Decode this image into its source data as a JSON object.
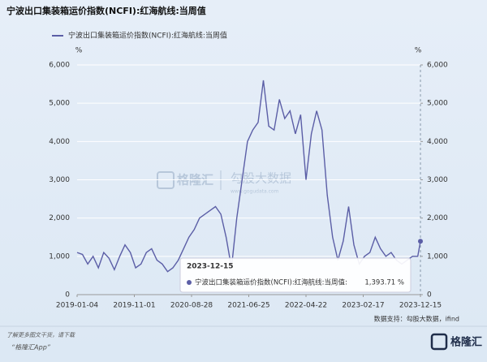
{
  "chart_data": {
    "type": "line",
    "title": "宁波出口集装箱运价指数(NCFI):红海航线:当周值",
    "y_unit": "%",
    "y2_unit": "%",
    "x": [
      "2019-01-04",
      "2019-02-01",
      "2019-03-01",
      "2019-03-29",
      "2019-04-26",
      "2019-05-24",
      "2019-06-21",
      "2019-07-19",
      "2019-08-16",
      "2019-09-13",
      "2019-10-11",
      "2019-11-08",
      "2019-12-06",
      "2020-01-03",
      "2020-01-31",
      "2020-02-28",
      "2020-03-27",
      "2020-04-24",
      "2020-05-22",
      "2020-06-19",
      "2020-07-17",
      "2020-08-14",
      "2020-09-11",
      "2020-10-09",
      "2020-11-06",
      "2020-12-04",
      "2021-01-01",
      "2021-01-29",
      "2021-02-26",
      "2021-03-26",
      "2021-04-23",
      "2021-05-21",
      "2021-06-18",
      "2021-07-16",
      "2021-08-13",
      "2021-09-10",
      "2021-10-08",
      "2021-11-05",
      "2021-12-03",
      "2021-12-31",
      "2022-01-28",
      "2022-02-25",
      "2022-03-25",
      "2022-04-22",
      "2022-05-20",
      "2022-06-17",
      "2022-07-15",
      "2022-08-12",
      "2022-09-09",
      "2022-10-07",
      "2022-11-04",
      "2022-12-02",
      "2022-12-30",
      "2023-01-27",
      "2023-02-24",
      "2023-03-24",
      "2023-04-21",
      "2023-05-19",
      "2023-06-16",
      "2023-07-14",
      "2023-08-11",
      "2023-09-08",
      "2023-10-06",
      "2023-11-03",
      "2023-12-01",
      "2023-12-15"
    ],
    "series": [
      {
        "name": "宁波出口集装箱运价指数(NCFI):红海航线:当周值",
        "color": "#5b5ea6",
        "values": [
          1100,
          1050,
          800,
          1000,
          700,
          1100,
          950,
          650,
          1000,
          1300,
          1100,
          700,
          800,
          1100,
          1200,
          900,
          800,
          600,
          700,
          900,
          1200,
          1500,
          1700,
          2000,
          2100,
          2200,
          2300,
          2100,
          1500,
          700,
          2000,
          3000,
          4000,
          4300,
          4500,
          5600,
          4400,
          4300,
          5100,
          4600,
          4800,
          4200,
          4700,
          3000,
          4200,
          4800,
          4300,
          2600,
          1500,
          900,
          1400,
          2300,
          1300,
          800,
          1000,
          1100,
          1500,
          1200,
          1000,
          1100,
          900,
          800,
          900,
          1000,
          1000,
          1393.71
        ]
      }
    ],
    "ylim": [
      0,
      6000
    ],
    "y2lim": [
      0,
      6000
    ],
    "yticks": [
      0,
      {
        "value": 1000,
        "label": "1,000"
      },
      {
        "value": 2000,
        "label": "2,000"
      },
      {
        "value": 3000,
        "label": "3,000"
      },
      {
        "value": 4000,
        "label": "4,000"
      },
      {
        "value": 5000,
        "label": "5,000"
      },
      {
        "value": 6000,
        "label": "6,000"
      }
    ],
    "y2ticks": [
      0,
      {
        "value": 1000,
        "label": "1,000"
      },
      {
        "value": 2000,
        "label": "2,000"
      },
      {
        "value": 3000,
        "label": "3,000"
      },
      {
        "value": 4000,
        "label": "4,000"
      },
      {
        "value": 5000,
        "label": "5,000"
      },
      {
        "value": 6000,
        "label": "6,000"
      }
    ],
    "xticks": [
      "2019-01-04",
      "2019-11-01",
      "2020-08-28",
      "2021-06-25",
      "2022-04-22",
      "2023-02-17",
      "2023-12-15"
    ],
    "grid": true,
    "tooltip": {
      "label": "宁波出口集装箱运价指数(NCFI):红海航线:当周值:",
      "value_label": "1,393.71 %"
    },
    "source": "数据支持：勾股大数据，ifind",
    "watermark": {
      "brand": "格隆汇",
      "partner": "勾股大数据",
      "url": "www.gogudata.com"
    }
  },
  "footer": {
    "line1": "了解更多图文干货，请下载",
    "line2": "“格隆汇App”",
    "logo": "格隆汇"
  }
}
